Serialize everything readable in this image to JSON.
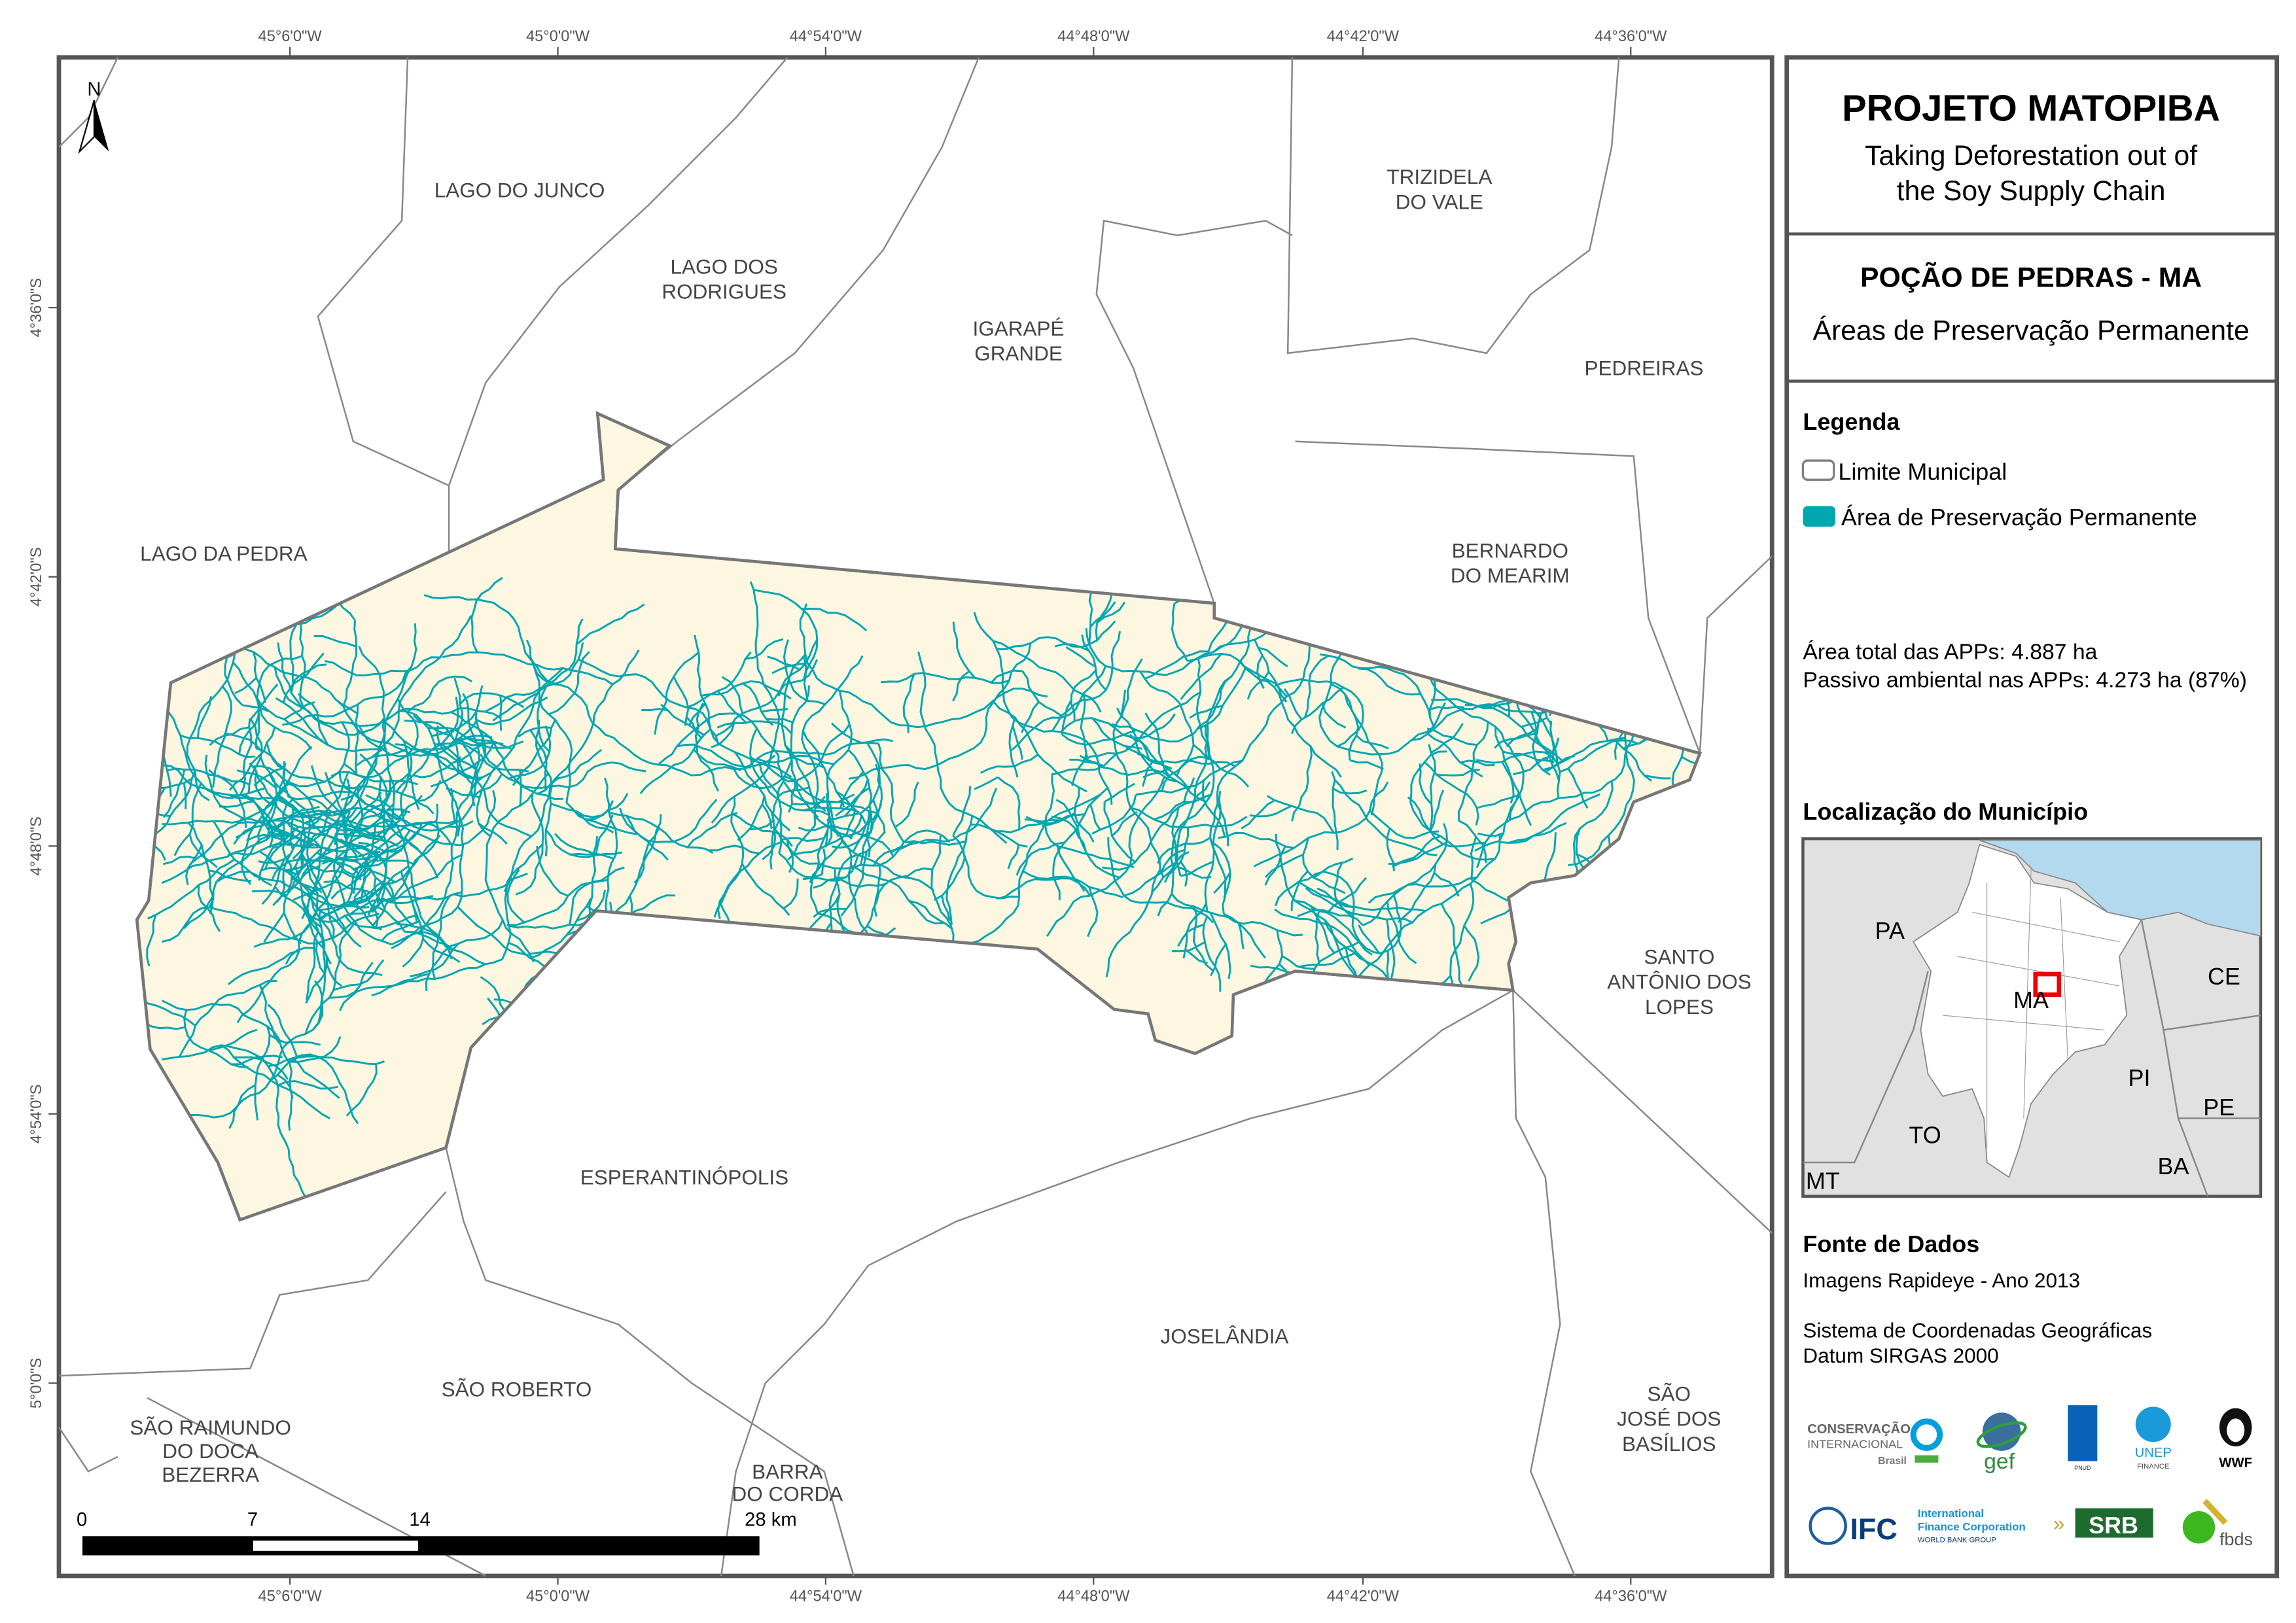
{
  "header": {
    "project_title": "PROJETO MATOPIBA",
    "subtitle_line1": "Taking Deforestation out of",
    "subtitle_line2": "the Soy Supply Chain",
    "municipality_title": "POÇÃO DE PEDRAS - MA",
    "map_theme": "Áreas de Preservação Permanente"
  },
  "legend": {
    "title": "Legenda",
    "items": [
      {
        "label": "Limite Municipal",
        "swatch": "outline",
        "color": "#808080"
      },
      {
        "label": "Área de Preservação Permanente",
        "swatch": "fill",
        "color": "#00a6b0"
      }
    ]
  },
  "stats": {
    "line1": "Área total das APPs: 4.887 ha",
    "line2": "Passivo ambiental nas APPs: 4.273 ha (87%)"
  },
  "locator": {
    "title": "Localização do Município",
    "states": [
      "PA",
      "MA",
      "CE",
      "PI",
      "PE",
      "TO",
      "BA",
      "MT"
    ],
    "colors": {
      "ocean": "#b3d9ee",
      "neighbors": "#e1e1e1",
      "state": "#ffffff",
      "highlight": "#ff0000"
    }
  },
  "sources": {
    "title": "Fonte de Dados",
    "line1": "Imagens Rapideye - Ano 2013",
    "line2": "Sistema de Coordenadas Geográficas",
    "line3": "Datum SIRGAS 2000"
  },
  "logos": [
    "CONSERVAÇÃO INTERNACIONAL Brasil",
    "gef",
    "PNUD",
    "UNEP FINANCE INITIATIVE",
    "WWF",
    "IFC International Finance Corporation WORLD BANK GROUP",
    "SRB SOCIEDADE RURAL BRASILEIRA",
    "fbds"
  ],
  "map": {
    "north_label": "N",
    "colors": {
      "municipality_fill": "#fdf6e1",
      "app_streams": "#00a6b0",
      "boundary": "#808080"
    },
    "lon_ticks": [
      "45°6'0\"W",
      "45°0'0\"W",
      "44°54'0\"W",
      "44°48'0\"W",
      "44°42'0\"W",
      "44°36'0\"W"
    ],
    "lat_ticks": [
      "4°36'0\"S",
      "4°42'0\"S",
      "4°48'0\"S",
      "4°54'0\"S",
      "5°0'0\"S"
    ],
    "municipalities": {
      "lago_do_junco": "LAGO DO JUNCO",
      "lago_dos_rodrigues_1": "LAGO DOS",
      "lago_dos_rodrigues_2": "RODRIGUES",
      "igarape_1": "IGARAPÉ",
      "igarape_2": "GRANDE",
      "trizidela_1": "TRIZIDELA",
      "trizidela_2": "DO VALE",
      "pedreiras": "PEDREIRAS",
      "lago_da_pedra": "LAGO DA PEDRA",
      "bernardo_1": "BERNARDO",
      "bernardo_2": "DO MEARIM",
      "santo_antonio_1": "SANTO",
      "santo_antonio_2": "ANTÔNIO DOS",
      "santo_antonio_3": "LOPES",
      "esperantinopolis": "ESPERANTINÓPOLIS",
      "joselandia": "JOSELÂNDIA",
      "sao_roberto": "SÃO ROBERTO",
      "sao_jose_1": "SÃO",
      "sao_jose_2": "JOSÉ DOS",
      "sao_jose_3": "BASÍLIOS",
      "sao_raimundo_1": "SÃO RAIMUNDO",
      "sao_raimundo_2": "DO DOCA",
      "sao_raimundo_3": "BEZERRA",
      "barra_1": "BARRA",
      "barra_2": "DO CORDA"
    },
    "scale_bar": {
      "labels": [
        "0",
        "7",
        "14",
        "28 km"
      ]
    }
  }
}
